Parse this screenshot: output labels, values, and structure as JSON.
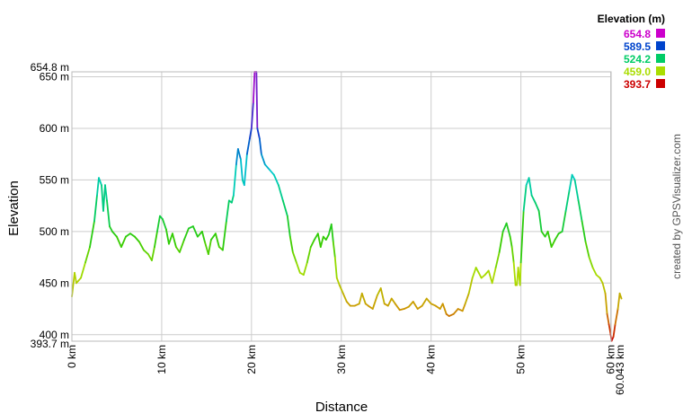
{
  "chart_data": {
    "type": "line",
    "xlabel": "Distance",
    "ylabel": "Elevation",
    "x_unit": "km",
    "y_unit": "m",
    "xlim": [
      0,
      60.043
    ],
    "ylim": [
      393.7,
      654.8
    ],
    "x_ticks": [
      {
        "value": 0,
        "label": "0 km"
      },
      {
        "value": 10,
        "label": "10 km"
      },
      {
        "value": 20,
        "label": "20 km"
      },
      {
        "value": 30,
        "label": "30 km"
      },
      {
        "value": 40,
        "label": "40 km"
      },
      {
        "value": 50,
        "label": "50 km"
      },
      {
        "value": 60,
        "label": "60 km"
      }
    ],
    "x_extra_tick": {
      "value": 60.043,
      "label": "60.043 km"
    },
    "y_ticks": [
      {
        "value": 400,
        "label": "400 m"
      },
      {
        "value": 450,
        "label": "450 m"
      },
      {
        "value": 500,
        "label": "500 m"
      },
      {
        "value": 550,
        "label": "550 m"
      },
      {
        "value": 600,
        "label": "600 m"
      },
      {
        "value": 650,
        "label": "650 m"
      }
    ],
    "y_extra_ticks": [
      {
        "value": 654.8,
        "label": "654.8 m"
      },
      {
        "value": 393.7,
        "label": "393.7 m"
      }
    ],
    "grid": true,
    "legend": {
      "title": "Elevation (m)",
      "placement": "top-right",
      "entries": [
        {
          "label": "654.8",
          "color": "#cc00cc"
        },
        {
          "label": "589.5",
          "color": "#0044cc"
        },
        {
          "label": "524.2",
          "color": "#00cc66"
        },
        {
          "label": "459.0",
          "color": "#aadd00"
        },
        {
          "label": "393.7",
          "color": "#cc0000"
        }
      ]
    },
    "color_scale": [
      {
        "value": 393.7,
        "color": "#cc0000"
      },
      {
        "value": 426.35,
        "color": "#cc9900"
      },
      {
        "value": 459.0,
        "color": "#aadd00"
      },
      {
        "value": 491.6,
        "color": "#33cc00"
      },
      {
        "value": 524.2,
        "color": "#00cc66"
      },
      {
        "value": 556.85,
        "color": "#00cccc"
      },
      {
        "value": 589.5,
        "color": "#0044cc"
      },
      {
        "value": 622.15,
        "color": "#6622cc"
      },
      {
        "value": 654.8,
        "color": "#cc00cc"
      }
    ],
    "series": [
      {
        "points": [
          [
            0,
            437
          ],
          [
            0.3,
            460
          ],
          [
            0.5,
            450
          ],
          [
            1,
            455
          ],
          [
            1.5,
            470
          ],
          [
            2,
            485
          ],
          [
            2.5,
            510
          ],
          [
            2.8,
            535
          ],
          [
            3,
            552
          ],
          [
            3.3,
            545
          ],
          [
            3.5,
            520
          ],
          [
            3.7,
            545
          ],
          [
            3.9,
            530
          ],
          [
            4.2,
            505
          ],
          [
            4.5,
            500
          ],
          [
            5,
            495
          ],
          [
            5.5,
            485
          ],
          [
            6,
            495
          ],
          [
            6.5,
            498
          ],
          [
            7,
            495
          ],
          [
            7.5,
            490
          ],
          [
            8,
            482
          ],
          [
            8.5,
            478
          ],
          [
            8.9,
            472
          ],
          [
            9.2,
            485
          ],
          [
            9.5,
            500
          ],
          [
            9.8,
            515
          ],
          [
            10.1,
            512
          ],
          [
            10.5,
            502
          ],
          [
            10.8,
            488
          ],
          [
            11.2,
            498
          ],
          [
            11.6,
            485
          ],
          [
            12,
            480
          ],
          [
            12.5,
            492
          ],
          [
            13,
            503
          ],
          [
            13.5,
            505
          ],
          [
            14,
            495
          ],
          [
            14.5,
            500
          ],
          [
            14.8,
            490
          ],
          [
            15.2,
            478
          ],
          [
            15.5,
            492
          ],
          [
            16,
            498
          ],
          [
            16.4,
            485
          ],
          [
            16.8,
            482
          ],
          [
            17.2,
            510
          ],
          [
            17.5,
            530
          ],
          [
            17.8,
            528
          ],
          [
            18,
            535
          ],
          [
            18.3,
            565
          ],
          [
            18.5,
            580
          ],
          [
            18.8,
            570
          ],
          [
            19,
            550
          ],
          [
            19.2,
            545
          ],
          [
            19.5,
            575
          ],
          [
            19.8,
            590
          ],
          [
            20,
            600
          ],
          [
            20.2,
            625
          ],
          [
            20.35,
            654.8
          ],
          [
            20.55,
            654.8
          ],
          [
            20.65,
            600
          ],
          [
            20.9,
            590
          ],
          [
            21.1,
            575
          ],
          [
            21.5,
            565
          ],
          [
            22,
            560
          ],
          [
            22.5,
            555
          ],
          [
            23,
            545
          ],
          [
            23.5,
            530
          ],
          [
            24,
            515
          ],
          [
            24.3,
            495
          ],
          [
            24.6,
            480
          ],
          [
            25,
            470
          ],
          [
            25.4,
            460
          ],
          [
            25.8,
            458
          ],
          [
            26.2,
            470
          ],
          [
            26.6,
            485
          ],
          [
            27,
            492
          ],
          [
            27.4,
            498
          ],
          [
            27.7,
            485
          ],
          [
            28,
            495
          ],
          [
            28.3,
            492
          ],
          [
            28.6,
            497
          ],
          [
            28.9,
            507
          ],
          [
            29.1,
            490
          ],
          [
            29.3,
            475
          ],
          [
            29.5,
            455
          ],
          [
            29.8,
            448
          ],
          [
            30.2,
            440
          ],
          [
            30.6,
            432
          ],
          [
            31,
            428
          ],
          [
            31.5,
            428
          ],
          [
            32,
            430
          ],
          [
            32.3,
            440
          ],
          [
            32.7,
            430
          ],
          [
            33,
            428
          ],
          [
            33.5,
            425
          ],
          [
            34,
            438
          ],
          [
            34.4,
            445
          ],
          [
            34.8,
            430
          ],
          [
            35.2,
            428
          ],
          [
            35.6,
            435
          ],
          [
            36,
            430
          ],
          [
            36.5,
            424
          ],
          [
            37,
            425
          ],
          [
            37.5,
            427
          ],
          [
            38,
            432
          ],
          [
            38.5,
            425
          ],
          [
            39,
            428
          ],
          [
            39.5,
            435
          ],
          [
            40,
            430
          ],
          [
            40.5,
            428
          ],
          [
            41,
            425
          ],
          [
            41.3,
            430
          ],
          [
            41.7,
            420
          ],
          [
            42,
            418
          ],
          [
            42.5,
            420
          ],
          [
            43,
            425
          ],
          [
            43.5,
            423
          ],
          [
            43.8,
            430
          ],
          [
            44.2,
            440
          ],
          [
            44.6,
            455
          ],
          [
            45,
            465
          ],
          [
            45.3,
            460
          ],
          [
            45.6,
            455
          ],
          [
            46,
            458
          ],
          [
            46.4,
            462
          ],
          [
            46.8,
            450
          ],
          [
            47.2,
            465
          ],
          [
            47.6,
            480
          ],
          [
            48,
            500
          ],
          [
            48.4,
            508
          ],
          [
            48.8,
            495
          ],
          [
            49,
            485
          ],
          [
            49.2,
            470
          ],
          [
            49.4,
            448
          ],
          [
            49.55,
            448
          ],
          [
            49.7,
            465
          ],
          [
            49.9,
            448
          ],
          [
            50,
            470
          ],
          [
            50.3,
            520
          ],
          [
            50.6,
            545
          ],
          [
            50.9,
            552
          ],
          [
            51.2,
            535
          ],
          [
            51.6,
            528
          ],
          [
            52,
            520
          ],
          [
            52.3,
            500
          ],
          [
            52.7,
            495
          ],
          [
            53,
            500
          ],
          [
            53.4,
            485
          ],
          [
            53.8,
            492
          ],
          [
            54.2,
            498
          ],
          [
            54.6,
            500
          ],
          [
            55,
            520
          ],
          [
            55.4,
            540
          ],
          [
            55.7,
            555
          ],
          [
            56,
            550
          ],
          [
            56.4,
            530
          ],
          [
            56.8,
            510
          ],
          [
            57.2,
            490
          ],
          [
            57.6,
            475
          ],
          [
            58,
            465
          ],
          [
            58.4,
            458
          ],
          [
            58.8,
            455
          ],
          [
            59.1,
            450
          ],
          [
            59.4,
            440
          ],
          [
            59.6,
            420
          ],
          [
            59.8,
            410
          ],
          [
            60,
            400
          ],
          [
            60.1,
            394
          ],
          [
            60.3,
            398
          ],
          [
            60.5,
            410
          ],
          [
            60.8,
            425
          ],
          [
            61,
            440
          ],
          [
            61.2,
            435
          ]
        ]
      }
    ]
  },
  "credit_text": "created by GPSVisualizer.com"
}
